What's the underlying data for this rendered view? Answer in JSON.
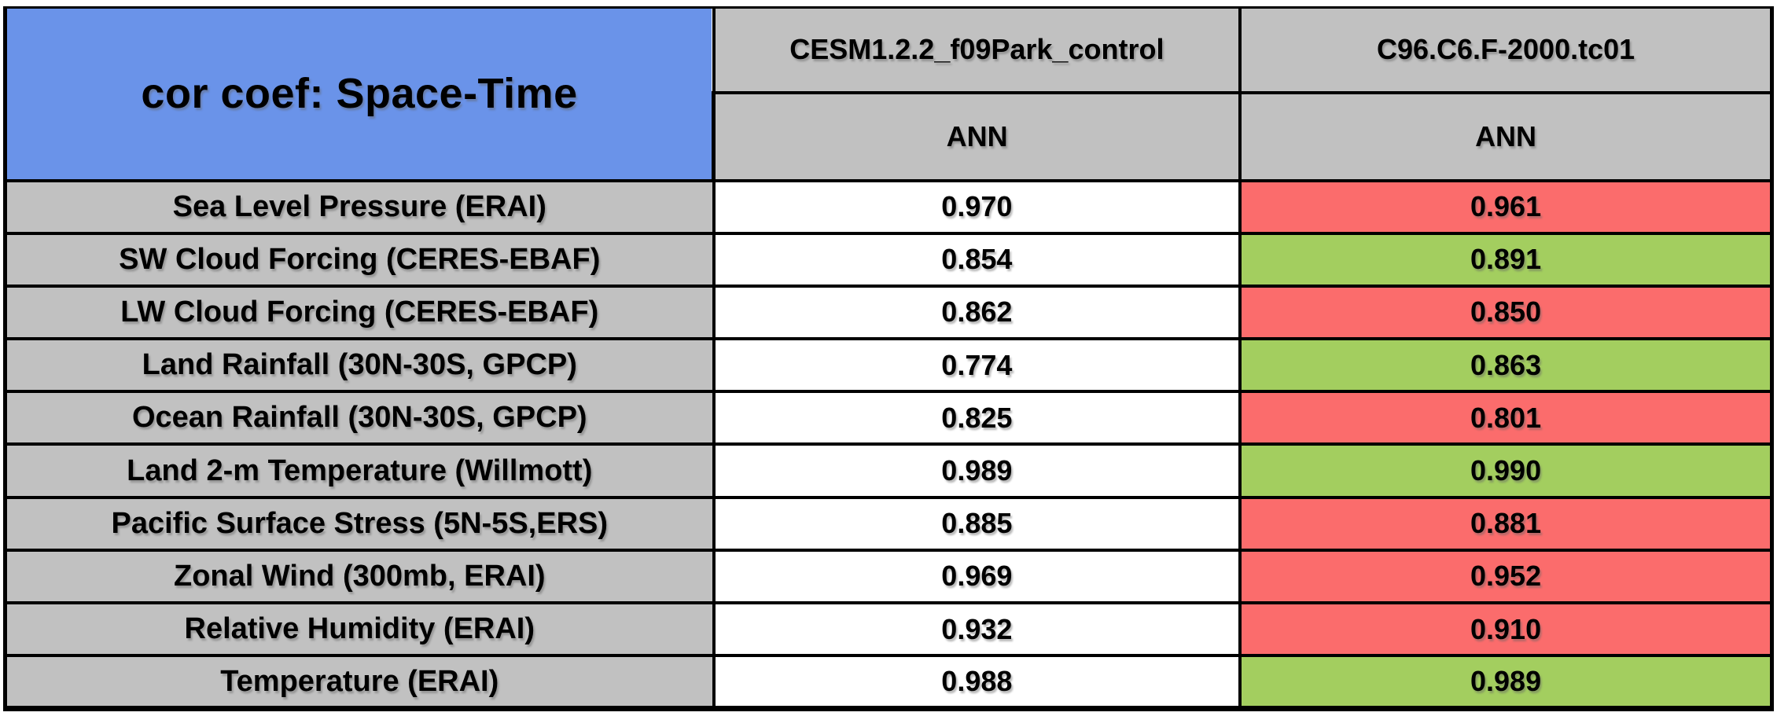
{
  "table": {
    "title": "cor coef: Space-Time",
    "columns": [
      {
        "model": "CESM1.2.2_f09Park_control",
        "season": "ANN"
      },
      {
        "model": "C96.C6.F-2000.tc01",
        "season": "ANN"
      }
    ],
    "rows": [
      {
        "label": "Sea Level Pressure (ERAI)",
        "ref_value": "0.970",
        "test_value": "0.961",
        "test_status": "worse"
      },
      {
        "label": "SW Cloud Forcing (CERES-EBAF)",
        "ref_value": "0.854",
        "test_value": "0.891",
        "test_status": "better"
      },
      {
        "label": "LW Cloud Forcing (CERES-EBAF)",
        "ref_value": "0.862",
        "test_value": "0.850",
        "test_status": "worse"
      },
      {
        "label": "Land Rainfall (30N-30S, GPCP)",
        "ref_value": "0.774",
        "test_value": "0.863",
        "test_status": "better"
      },
      {
        "label": "Ocean Rainfall (30N-30S, GPCP)",
        "ref_value": "0.825",
        "test_value": "0.801",
        "test_status": "worse"
      },
      {
        "label": "Land 2-m Temperature (Willmott)",
        "ref_value": "0.989",
        "test_value": "0.990",
        "test_status": "better"
      },
      {
        "label": "Pacific Surface Stress (5N-5S,ERS)",
        "ref_value": "0.885",
        "test_value": "0.881",
        "test_status": "worse"
      },
      {
        "label": "Zonal Wind (300mb, ERAI)",
        "ref_value": "0.969",
        "test_value": "0.952",
        "test_status": "worse"
      },
      {
        "label": "Relative Humidity (ERAI)",
        "ref_value": "0.932",
        "test_value": "0.910",
        "test_status": "worse"
      },
      {
        "label": "Temperature (ERAI)",
        "ref_value": "0.988",
        "test_value": "0.989",
        "test_status": "better"
      }
    ],
    "colors": {
      "title_blue": "#6A93E9",
      "header_gray": "#C1C1C1",
      "reference_white": "#FFFFFF",
      "worse_red": "#FB6C6C",
      "better_green": "#A3CE5F",
      "border_black": "#000000"
    }
  },
  "chart_data": {
    "type": "table",
    "title": "cor coef: Space-Time",
    "columns": [
      "CESM1.2.2_f09Park_control ANN",
      "C96.C6.F-2000.tc01 ANN"
    ],
    "row_labels": [
      "Sea Level Pressure (ERAI)",
      "SW Cloud Forcing (CERES-EBAF)",
      "LW Cloud Forcing (CERES-EBAF)",
      "Land Rainfall (30N-30S, GPCP)",
      "Ocean Rainfall (30N-30S, GPCP)",
      "Land 2-m Temperature (Willmott)",
      "Pacific Surface Stress (5N-5S,ERS)",
      "Zonal Wind (300mb, ERAI)",
      "Relative Humidity (ERAI)",
      "Temperature (ERAI)"
    ],
    "values": [
      [
        0.97,
        0.961
      ],
      [
        0.854,
        0.891
      ],
      [
        0.862,
        0.85
      ],
      [
        0.774,
        0.863
      ],
      [
        0.825,
        0.801
      ],
      [
        0.989,
        0.99
      ],
      [
        0.885,
        0.881
      ],
      [
        0.969,
        0.952
      ],
      [
        0.932,
        0.91
      ],
      [
        0.988,
        0.989
      ]
    ],
    "second_column_cell_colors": [
      "red",
      "green",
      "red",
      "green",
      "red",
      "green",
      "red",
      "red",
      "red",
      "green"
    ]
  }
}
